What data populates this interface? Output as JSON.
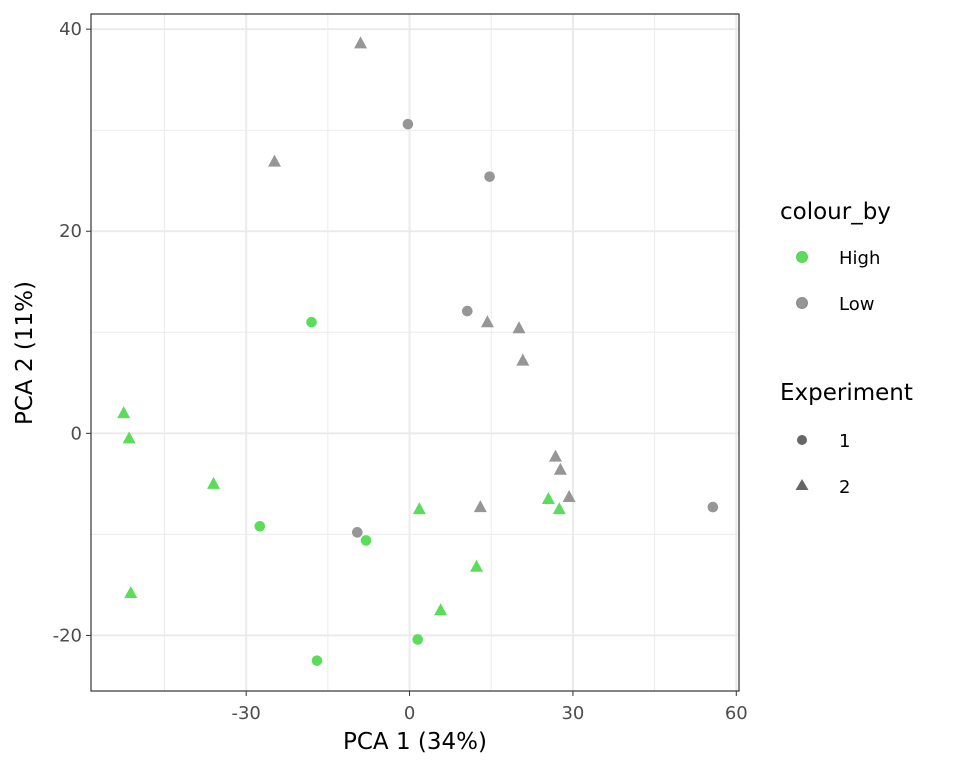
{
  "chart_data": {
    "type": "scatter",
    "xlabel": "PCA 1 (34%)",
    "ylabel": "PCA 2 (11%)",
    "xlim": [
      -58.5,
      60.5
    ],
    "ylim": [
      -25.5,
      41.5
    ],
    "x_ticks": [
      -30,
      0,
      30,
      60
    ],
    "y_ticks": [
      -20,
      0,
      20,
      40
    ],
    "x_tick_labels": [
      "-30",
      "0",
      "30",
      "60"
    ],
    "y_tick_labels": [
      "-20",
      "0",
      "20",
      "40"
    ],
    "grid": true,
    "legend_position": "right",
    "colour_legend": {
      "title": "colour_by",
      "entries": [
        {
          "label": "High",
          "color": "#5ade5a"
        },
        {
          "label": "Low",
          "color": "#969696"
        }
      ]
    },
    "shape_legend": {
      "title": "Experiment",
      "entries": [
        {
          "label": "1",
          "shape": "circle"
        },
        {
          "label": "2",
          "shape": "triangle"
        }
      ]
    },
    "series": [
      {
        "name": "High",
        "color": "#5ade5a",
        "points": [
          {
            "x": -18,
            "y": 11,
            "shape": "circle"
          },
          {
            "x": -27.5,
            "y": -9.2,
            "shape": "circle"
          },
          {
            "x": -8,
            "y": -10.6,
            "shape": "circle"
          },
          {
            "x": -17,
            "y": -22.5,
            "shape": "circle"
          },
          {
            "x": 1.5,
            "y": -20.4,
            "shape": "circle"
          },
          {
            "x": -52.5,
            "y": 2,
            "shape": "triangle"
          },
          {
            "x": -51.5,
            "y": -0.5,
            "shape": "triangle"
          },
          {
            "x": -36,
            "y": -5,
            "shape": "triangle"
          },
          {
            "x": -51.2,
            "y": -15.8,
            "shape": "triangle"
          },
          {
            "x": 1.8,
            "y": -7.5,
            "shape": "triangle"
          },
          {
            "x": 12.3,
            "y": -13.2,
            "shape": "triangle"
          },
          {
            "x": 5.7,
            "y": -17.5,
            "shape": "triangle"
          },
          {
            "x": 25.5,
            "y": -6.5,
            "shape": "triangle"
          },
          {
            "x": 27.5,
            "y": -7.5,
            "shape": "triangle"
          }
        ]
      },
      {
        "name": "Low",
        "color": "#969696",
        "points": [
          {
            "x": -0.3,
            "y": 30.6,
            "shape": "circle"
          },
          {
            "x": 14.7,
            "y": 25.4,
            "shape": "circle"
          },
          {
            "x": 10.6,
            "y": 12.1,
            "shape": "circle"
          },
          {
            "x": -9.6,
            "y": -9.8,
            "shape": "circle"
          },
          {
            "x": 55.7,
            "y": -7.3,
            "shape": "circle"
          },
          {
            "x": -9,
            "y": 38.6,
            "shape": "triangle"
          },
          {
            "x": -24.8,
            "y": 26.9,
            "shape": "triangle"
          },
          {
            "x": 14.3,
            "y": 11,
            "shape": "triangle"
          },
          {
            "x": 20.1,
            "y": 10.4,
            "shape": "triangle"
          },
          {
            "x": 20.8,
            "y": 7.2,
            "shape": "triangle"
          },
          {
            "x": 26.8,
            "y": -2.3,
            "shape": "triangle"
          },
          {
            "x": 27.7,
            "y": -3.6,
            "shape": "triangle"
          },
          {
            "x": 29.3,
            "y": -6.3,
            "shape": "triangle"
          },
          {
            "x": 13,
            "y": -7.3,
            "shape": "triangle"
          }
        ]
      }
    ]
  }
}
